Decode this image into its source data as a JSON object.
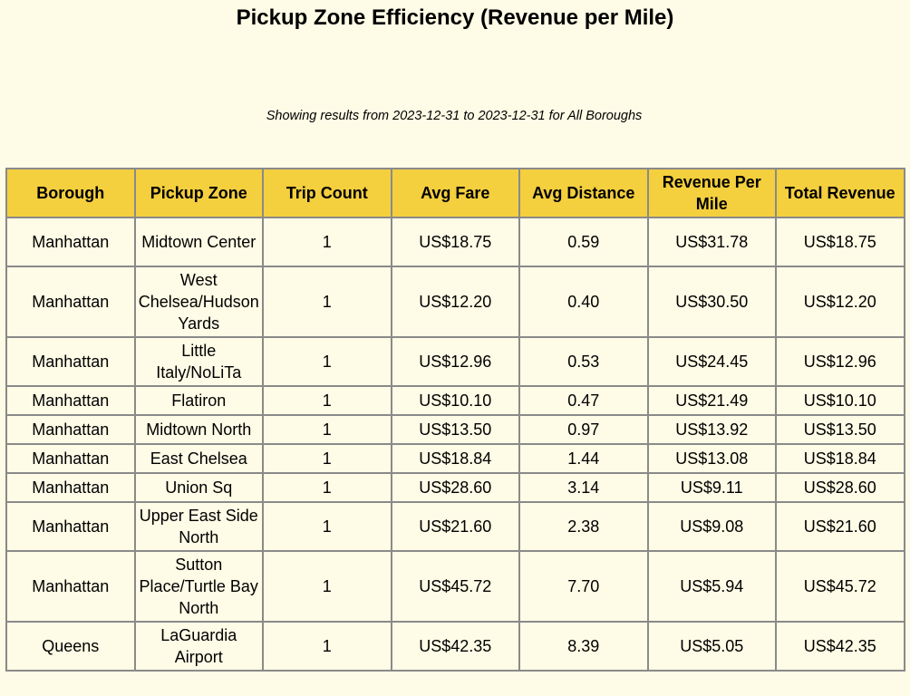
{
  "title": "Pickup Zone Efficiency (Revenue per Mile)",
  "subtitle": "Showing results from 2023-12-31 to 2023-12-31 for All Boroughs",
  "table": {
    "headers": [
      "Borough",
      "Pickup Zone",
      "Trip Count",
      "Avg Fare",
      "Avg Distance",
      "Revenue Per Mile",
      "Total Revenue"
    ],
    "rows": [
      [
        "Manhattan",
        "Midtown Center",
        "1",
        "US$18.75",
        "0.59",
        "US$31.78",
        "US$18.75"
      ],
      [
        "Manhattan",
        "West Chelsea/Hudson Yards",
        "1",
        "US$12.20",
        "0.40",
        "US$30.50",
        "US$12.20"
      ],
      [
        "Manhattan",
        "Little Italy/NoLiTa",
        "1",
        "US$12.96",
        "0.53",
        "US$24.45",
        "US$12.96"
      ],
      [
        "Manhattan",
        "Flatiron",
        "1",
        "US$10.10",
        "0.47",
        "US$21.49",
        "US$10.10"
      ],
      [
        "Manhattan",
        "Midtown North",
        "1",
        "US$13.50",
        "0.97",
        "US$13.92",
        "US$13.50"
      ],
      [
        "Manhattan",
        "East Chelsea",
        "1",
        "US$18.84",
        "1.44",
        "US$13.08",
        "US$18.84"
      ],
      [
        "Manhattan",
        "Union Sq",
        "1",
        "US$28.60",
        "3.14",
        "US$9.11",
        "US$28.60"
      ],
      [
        "Manhattan",
        "Upper East Side North",
        "1",
        "US$21.60",
        "2.38",
        "US$9.08",
        "US$21.60"
      ],
      [
        "Manhattan",
        "Sutton Place/Turtle Bay North",
        "1",
        "US$45.72",
        "7.70",
        "US$5.94",
        "US$45.72"
      ],
      [
        "Queens",
        "LaGuardia Airport",
        "1",
        "US$42.35",
        "8.39",
        "US$5.05",
        "US$42.35"
      ]
    ]
  }
}
